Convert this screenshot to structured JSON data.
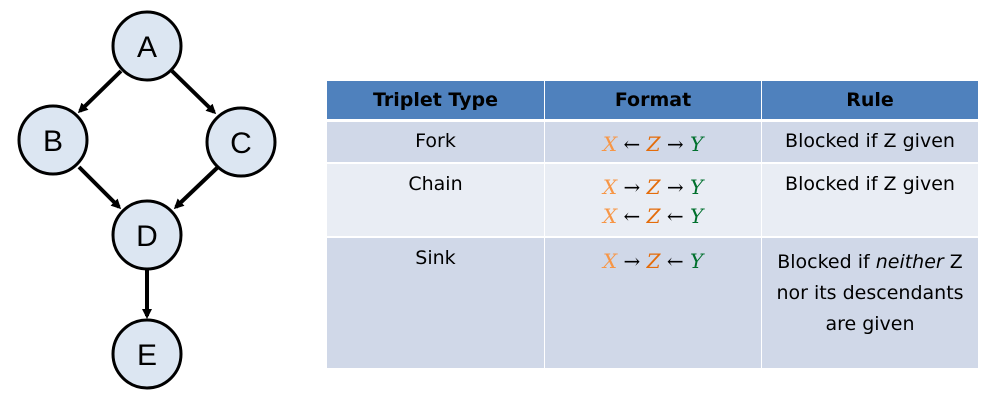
{
  "graph": {
    "nodes": [
      {
        "id": "A",
        "label": "A"
      },
      {
        "id": "B",
        "label": "B"
      },
      {
        "id": "C",
        "label": "C"
      },
      {
        "id": "D",
        "label": "D"
      },
      {
        "id": "E",
        "label": "E"
      }
    ],
    "edges": [
      {
        "from": "A",
        "to": "B"
      },
      {
        "from": "A",
        "to": "C"
      },
      {
        "from": "B",
        "to": "D"
      },
      {
        "from": "C",
        "to": "D"
      },
      {
        "from": "D",
        "to": "E"
      }
    ],
    "colors": {
      "node_fill": "#dce6f2",
      "node_stroke": "#000000",
      "edge": "#000000"
    }
  },
  "table": {
    "headers": [
      "Triplet Type",
      "Format",
      "Rule"
    ],
    "colors": {
      "header": "#4f81bd",
      "row_dark": "#d0d8e8",
      "row_light": "#e9edf4",
      "x_var": "#f79646",
      "z_var": "#e46c0a",
      "y_var": "#00702d"
    },
    "rows": [
      {
        "type": "Fork",
        "formats": [
          {
            "x": "X",
            "a1": "←",
            "z": "Z",
            "a2": "→",
            "y": "Y"
          }
        ],
        "rule": "Blocked if Z given"
      },
      {
        "type": "Chain",
        "formats": [
          {
            "x": "X",
            "a1": "→",
            "z": "Z",
            "a2": "→",
            "y": "Y"
          },
          {
            "x": "X",
            "a1": "←",
            "z": "Z",
            "a2": "←",
            "y": "Y"
          }
        ],
        "rule": "Blocked if Z given"
      },
      {
        "type": "Sink",
        "formats": [
          {
            "x": "X",
            "a1": "→",
            "z": "Z",
            "a2": "←",
            "y": "Y"
          }
        ],
        "rule_parts": {
          "before": "Blocked if ",
          "emphasis": "neither",
          "after": " Z nor its descendants are given"
        }
      }
    ]
  }
}
